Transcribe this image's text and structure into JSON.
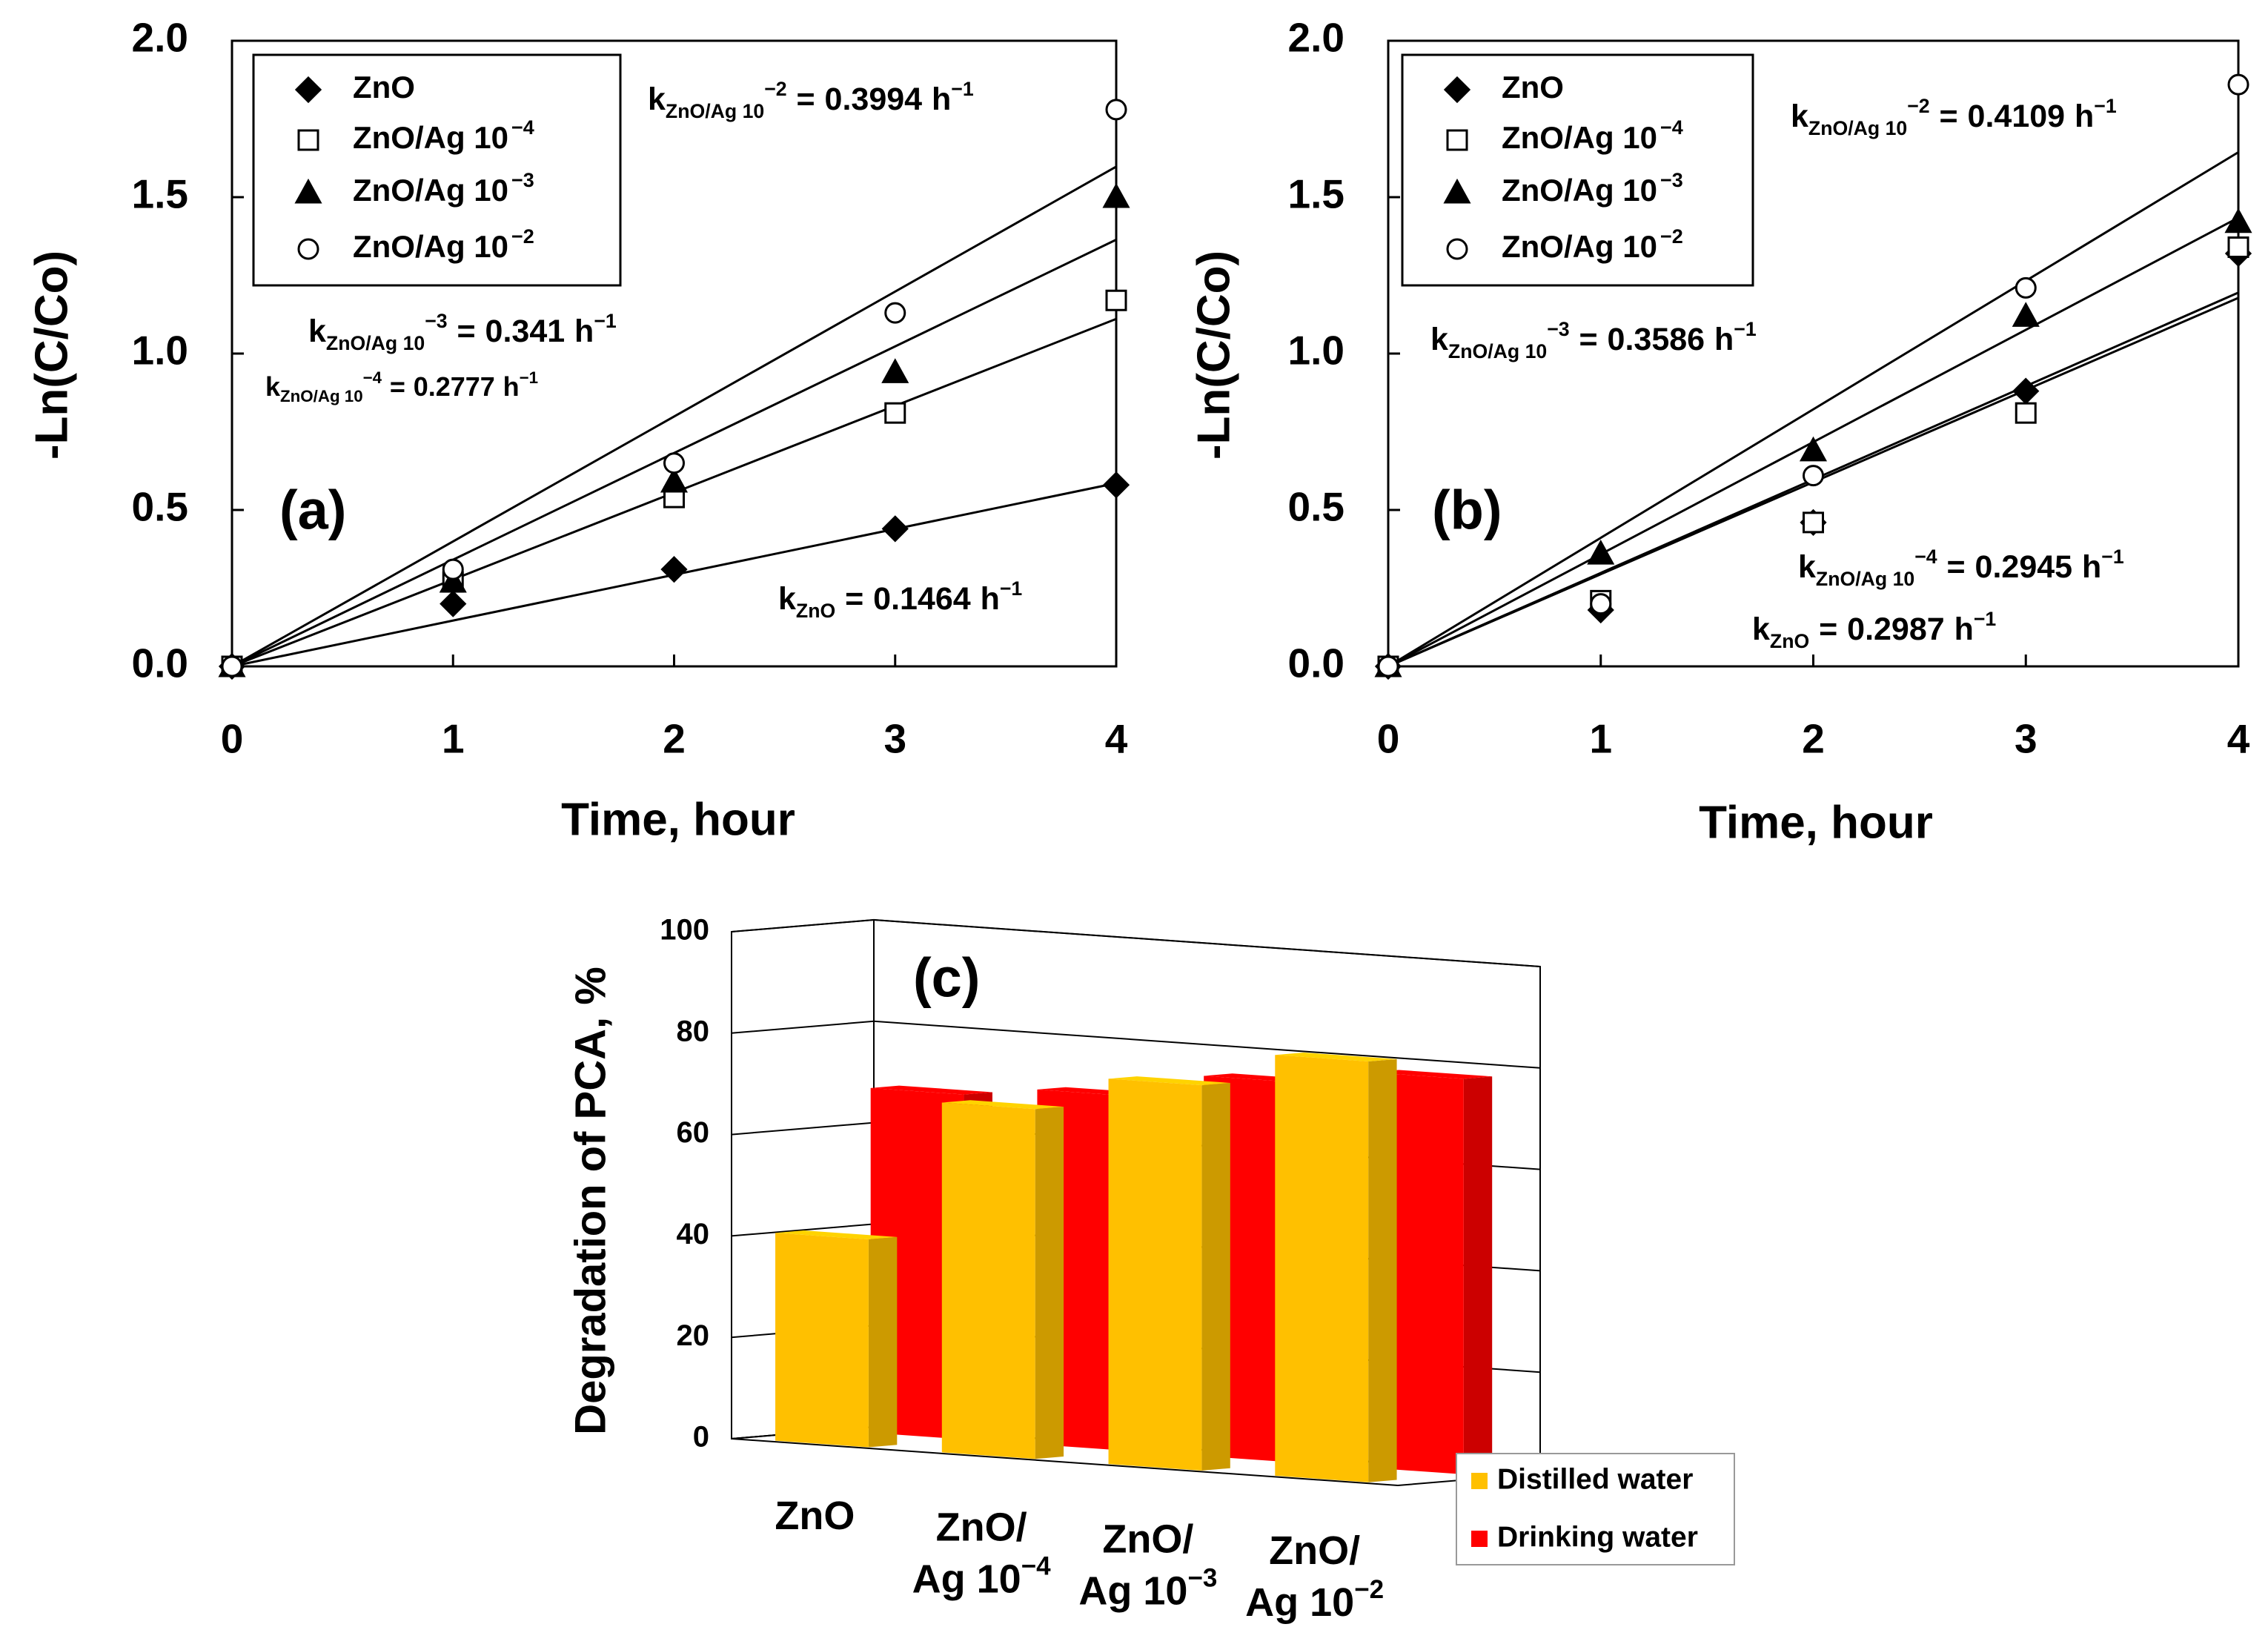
{
  "chart_data": [
    {
      "type": "scatter",
      "panel": "(a)",
      "x_label": "Time, hour",
      "y_label": "-Ln(C/Co)",
      "x": [
        0,
        1,
        2,
        3,
        4
      ],
      "xlim": [
        0,
        4
      ],
      "xticks": [
        0,
        1,
        2,
        3,
        4
      ],
      "ylim": [
        0,
        2
      ],
      "yticks": [
        {
          "value": 0,
          "label": "0.0"
        },
        {
          "value": 0.5,
          "label": "0.5"
        },
        {
          "value": 1,
          "label": "1.0"
        },
        {
          "value": 1.5,
          "label": "1.5"
        },
        {
          "value": 2,
          "label": "2.0"
        }
      ],
      "series": [
        {
          "name": "ZnO",
          "marker": "diamond",
          "filled": true,
          "color": "#000000",
          "values": [
            0,
            0.2,
            0.31,
            0.44,
            0.58
          ],
          "fit": {
            "symbol": "k",
            "sub": "ZnO",
            "eq": "=",
            "value": 0.1464,
            "unit": "h",
            "unit_sup": "−1"
          }
        },
        {
          "name": "ZnO/Ag 10",
          "name_sup": "−4",
          "marker": "square",
          "filled": false,
          "color": "#000000",
          "values": [
            0,
            0.27,
            0.54,
            0.81,
            1.17
          ],
          "fit": {
            "symbol": "k",
            "sub": "ZnO/Ag 10",
            "sup": "−4",
            "eq": "=",
            "value": 0.2777,
            "unit": "h",
            "unit_sup": "−1"
          }
        },
        {
          "name": "ZnO/Ag 10",
          "name_sup": "−3",
          "marker": "triangle",
          "filled": true,
          "color": "#000000",
          "values": [
            0,
            0.27,
            0.59,
            0.94,
            1.5
          ],
          "fit": {
            "symbol": "k",
            "sub": "ZnO/Ag 10",
            "sup": "−3",
            "eq": "=",
            "value": 0.341,
            "unit": "h",
            "unit_sup": "−1"
          }
        },
        {
          "name": "ZnO/Ag 10",
          "name_sup": "−2",
          "marker": "circle",
          "filled": false,
          "color": "#000000",
          "values": [
            0,
            0.31,
            0.65,
            1.13,
            1.78
          ],
          "fit": {
            "symbol": "k",
            "sub": "ZnO/Ag 10",
            "sup": "−2",
            "eq": "=",
            "value": 0.3994,
            "unit": "h",
            "unit_sup": "−1"
          }
        }
      ]
    },
    {
      "type": "scatter",
      "panel": "(b)",
      "x_label": "Time, hour",
      "y_label": "-Ln(C/Co)",
      "x": [
        0,
        1,
        2,
        3,
        4
      ],
      "xlim": [
        0,
        4
      ],
      "xticks": [
        0,
        1,
        2,
        3,
        4
      ],
      "ylim": [
        0,
        2
      ],
      "yticks": [
        {
          "value": 0,
          "label": "0.0"
        },
        {
          "value": 0.5,
          "label": "0.5"
        },
        {
          "value": 1,
          "label": "1.0"
        },
        {
          "value": 1.5,
          "label": "1.5"
        },
        {
          "value": 2,
          "label": "2.0"
        }
      ],
      "series": [
        {
          "name": "ZnO",
          "marker": "diamond",
          "filled": true,
          "color": "#000000",
          "values": [
            0,
            0.18,
            0.46,
            0.88,
            1.32
          ],
          "fit": {
            "symbol": "k",
            "sub": "ZnO",
            "eq": "=",
            "value": 0.2987,
            "unit": "h",
            "unit_sup": "−1"
          }
        },
        {
          "name": "ZnO/Ag 10",
          "name_sup": "−4",
          "marker": "square",
          "filled": false,
          "color": "#000000",
          "values": [
            0,
            0.21,
            0.46,
            0.81,
            1.34
          ],
          "fit": {
            "symbol": "k",
            "sub": "ZnO/Ag 10",
            "sup": "−4",
            "eq": "=",
            "value": 0.2945,
            "unit": "h",
            "unit_sup": "−1"
          }
        },
        {
          "name": "ZnO/Ag 10",
          "name_sup": "−3",
          "marker": "triangle",
          "filled": true,
          "color": "#000000",
          "values": [
            0,
            0.36,
            0.69,
            1.12,
            1.42
          ],
          "fit": {
            "symbol": "k",
            "sub": "ZnO/Ag 10",
            "sup": "−3",
            "eq": "=",
            "value": 0.3586,
            "unit": "h",
            "unit_sup": "−1"
          }
        },
        {
          "name": "ZnO/Ag 10",
          "name_sup": "−2",
          "marker": "circle",
          "filled": false,
          "color": "#000000",
          "values": [
            0,
            0.2,
            0.61,
            1.21,
            1.86
          ],
          "fit": {
            "symbol": "k",
            "sub": "ZnO/Ag 10",
            "sup": "−2",
            "eq": "=",
            "value": 0.4109,
            "unit": "h",
            "unit_sup": "−1"
          }
        }
      ]
    },
    {
      "type": "bar3d",
      "panel": "(c)",
      "y_label": "Degradation of PCA, %",
      "categories": [
        {
          "lines": [
            "ZnO"
          ]
        },
        {
          "lines": [
            "ZnO/",
            "Ag 10"
          ],
          "sup": "−4"
        },
        {
          "lines": [
            "ZnO/",
            "Ag 10"
          ],
          "sup": "−3"
        },
        {
          "lines": [
            "ZnO/",
            "Ag 10"
          ],
          "sup": "−2"
        }
      ],
      "ylim": [
        0,
        100
      ],
      "yticks": [
        0,
        20,
        40,
        60,
        80,
        100
      ],
      "series": [
        {
          "name": "Distilled water",
          "color": "#ffc000",
          "values": [
            41,
            69,
            76,
            83
          ]
        },
        {
          "name": "Drinking water",
          "color": "#ff0000",
          "values": [
            68,
            70,
            75,
            78
          ]
        }
      ]
    }
  ]
}
